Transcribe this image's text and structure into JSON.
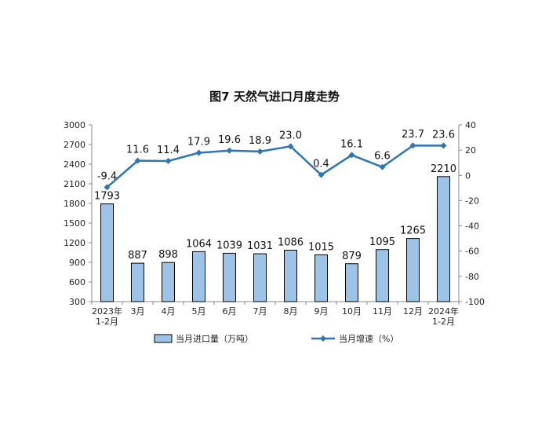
{
  "chart_data": {
    "type": "bar",
    "title": "图7  天然气进口月度走势",
    "categories": [
      [
        "2023年",
        "1-2月"
      ],
      [
        "3月"
      ],
      [
        "4月"
      ],
      [
        "5月"
      ],
      [
        "6月"
      ],
      [
        "7月"
      ],
      [
        "8月"
      ],
      [
        "9月"
      ],
      [
        "10月"
      ],
      [
        "11月"
      ],
      [
        "12月"
      ],
      [
        "2024年",
        "1-2月"
      ]
    ],
    "series": [
      {
        "name": "当月进口量（万吨）",
        "type": "bar",
        "axis": "left",
        "values": [
          1793,
          887,
          898,
          1064,
          1039,
          1031,
          1086,
          1015,
          879,
          1095,
          1265,
          2210
        ],
        "color": "#9dc3e6"
      },
      {
        "name": "当月增速（%）",
        "type": "line",
        "axis": "right",
        "values": [
          -9.4,
          11.6,
          11.4,
          17.9,
          19.6,
          18.9,
          23.0,
          0.4,
          16.1,
          6.6,
          23.7,
          23.6
        ],
        "labels": [
          "-9.4",
          "11.6",
          "11.4",
          "17.9",
          "19.6",
          "18.9",
          "23.0",
          "0.4",
          "16.1",
          "6.6",
          "23.7",
          "23.6"
        ],
        "color": "#2e75b6"
      }
    ],
    "y_left": {
      "min": 300,
      "max": 3000,
      "ticks": [
        300,
        600,
        900,
        1200,
        1500,
        1800,
        2100,
        2400,
        2700,
        3000
      ]
    },
    "y_right": {
      "min": -100,
      "max": 40,
      "ticks": [
        -100,
        -80,
        -60,
        -40,
        -20,
        0,
        20,
        40
      ]
    },
    "legend_position": "bottom",
    "grid": false
  }
}
